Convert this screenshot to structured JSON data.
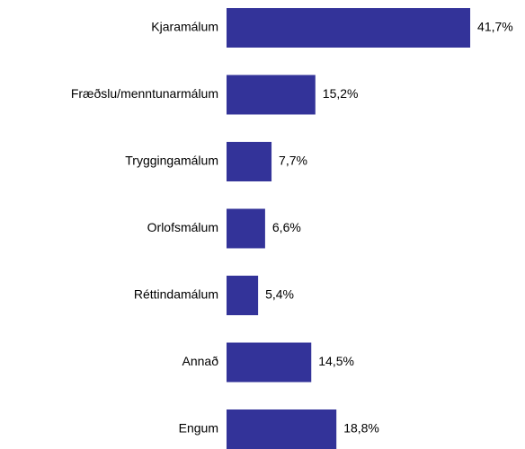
{
  "chart_data": {
    "type": "bar",
    "orientation": "horizontal",
    "categories": [
      "Kjaramálum",
      "Fræðslu/menntunarmálum",
      "Tryggingamálum",
      "Orlofsmálum",
      "Réttindamálum",
      "Annað",
      "Engum"
    ],
    "values": [
      41.7,
      15.2,
      7.7,
      6.6,
      5.4,
      14.5,
      18.8
    ],
    "value_labels": [
      "41,7%",
      "15,2%",
      "7,7%",
      "6,6%",
      "5,4%",
      "14,5%",
      "18,8%"
    ],
    "color": "#333399"
  }
}
